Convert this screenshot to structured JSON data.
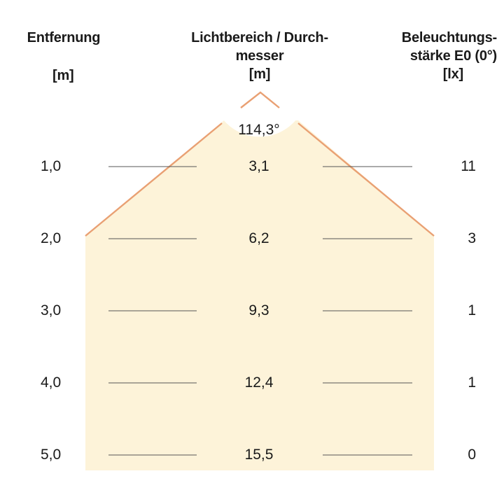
{
  "headers": {
    "distance": [
      "Entfernung",
      "[m]"
    ],
    "diameter": [
      "Lichtbereich / Durch-",
      "messer",
      "[m]"
    ],
    "illuminance": [
      "Beleuchtungs-",
      "stärke E0 (0°)",
      "[lx]"
    ]
  },
  "beam_angle": "114,3°",
  "rows": [
    {
      "distance": "1,0",
      "diameter": "3,1",
      "illuminance": "11"
    },
    {
      "distance": "2,0",
      "diameter": "6,2",
      "illuminance": "3"
    },
    {
      "distance": "3,0",
      "diameter": "9,3",
      "illuminance": "1"
    },
    {
      "distance": "4,0",
      "diameter": "12,4",
      "illuminance": "1"
    },
    {
      "distance": "5,0",
      "diameter": "15,5",
      "illuminance": "0"
    }
  ],
  "colors": {
    "light_area": "#fdf3d9",
    "beam_edge": "#e9a073",
    "rule_line": "#555555"
  }
}
